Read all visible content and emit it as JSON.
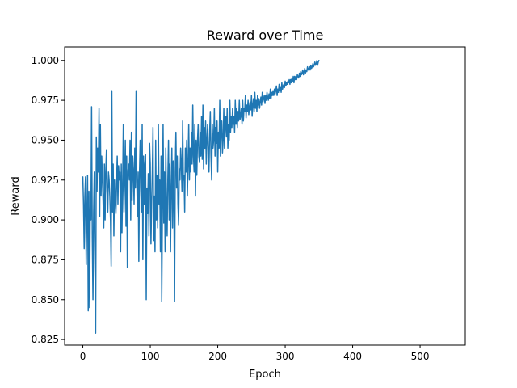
{
  "chart_data": {
    "type": "line",
    "title": "Reward over Time",
    "xlabel": "Epoch",
    "ylabel": "Reward",
    "xlim": [
      -27,
      567
    ],
    "ylim": [
      0.8215,
      1.0085
    ],
    "xticks": [
      0,
      100,
      200,
      300,
      400,
      500
    ],
    "xtick_labels": [
      "0",
      "100",
      "200",
      "300",
      "400",
      "500"
    ],
    "yticks": [
      0.825,
      0.85,
      0.875,
      0.9,
      0.925,
      0.95,
      0.975,
      1.0
    ],
    "ytick_labels": [
      "0.825",
      "0.850",
      "0.875",
      "0.900",
      "0.925",
      "0.950",
      "0.975",
      "1.000"
    ],
    "grid": false,
    "legend": "none",
    "series": [
      {
        "color": "#1f77b4",
        "x_start": 0,
        "x_step": 1,
        "values": [
          0.927,
          0.91,
          0.882,
          0.915,
          0.927,
          0.872,
          0.905,
          0.928,
          0.843,
          0.918,
          0.845,
          0.908,
          0.9,
          0.971,
          0.89,
          0.85,
          0.905,
          0.93,
          0.87,
          0.829,
          0.952,
          0.918,
          0.945,
          0.93,
          0.97,
          0.902,
          0.96,
          0.915,
          0.94,
          0.925,
          0.912,
          0.895,
          0.935,
          0.9,
          0.93,
          0.944,
          0.918,
          0.905,
          0.93,
          0.925,
          0.915,
          0.9,
          0.871,
          0.981,
          0.905,
          0.935,
          0.89,
          0.925,
          0.912,
          0.904,
          0.922,
          0.94,
          0.91,
          0.934,
          0.925,
          0.93,
          0.88,
          0.935,
          0.892,
          0.92,
          0.96,
          0.905,
          0.928,
          0.95,
          0.896,
          0.94,
          0.87,
          0.931,
          0.935,
          0.925,
          0.95,
          0.9,
          0.955,
          0.912,
          0.94,
          0.93,
          0.91,
          0.945,
          0.92,
          0.981,
          0.925,
          0.902,
          0.93,
          0.874,
          0.93,
          0.95,
          0.92,
          0.905,
          0.96,
          0.875,
          0.94,
          0.91,
          0.935,
          0.941,
          0.85,
          0.92,
          0.904,
          0.929,
          0.89,
          0.948,
          0.935,
          0.885,
          0.91,
          0.93,
          0.958,
          0.887,
          0.915,
          0.88,
          0.95,
          0.9,
          0.928,
          0.895,
          0.96,
          0.91,
          0.925,
          0.88,
          0.94,
          0.849,
          0.905,
          0.96,
          0.898,
          0.93,
          0.88,
          0.945,
          0.91,
          0.89,
          0.925,
          0.95,
          0.9,
          0.935,
          0.88,
          0.92,
          0.945,
          0.895,
          0.937,
          0.91,
          0.849,
          0.93,
          0.955,
          0.92,
          0.94,
          0.91,
          0.897,
          0.932,
          0.925,
          0.945,
          0.935,
          0.918,
          0.962,
          0.925,
          0.928,
          0.905,
          0.945,
          0.93,
          0.95,
          0.915,
          0.935,
          0.96,
          0.925,
          0.945,
          0.93,
          0.955,
          0.935,
          0.972,
          0.94,
          0.93,
          0.96,
          0.915,
          0.95,
          0.928,
          0.95,
          0.96,
          0.94,
          0.936,
          0.955,
          0.94,
          0.965,
          0.938,
          0.972,
          0.932,
          0.958,
          0.945,
          0.962,
          0.935,
          0.95,
          0.96,
          0.942,
          0.93,
          0.955,
          0.968,
          0.94,
          0.925,
          0.96,
          0.945,
          0.95,
          0.97,
          0.94,
          0.958,
          0.948,
          0.962,
          0.93,
          0.955,
          0.945,
          0.975,
          0.94,
          0.956,
          0.962,
          0.942,
          0.95,
          0.97,
          0.945,
          0.958,
          0.965,
          0.952,
          0.97,
          0.945,
          0.96,
          0.95,
          0.975,
          0.955,
          0.965,
          0.958,
          0.97,
          0.96,
          0.965,
          0.955,
          0.975,
          0.96,
          0.97,
          0.958,
          0.968,
          0.962,
          0.975,
          0.963,
          0.965,
          0.97,
          0.96,
          0.975,
          0.962,
          0.97,
          0.968,
          0.978,
          0.964,
          0.972,
          0.968,
          0.975,
          0.966,
          0.971,
          0.974,
          0.969,
          0.978,
          0.965,
          0.972,
          0.976,
          0.968,
          0.98,
          0.97,
          0.975,
          0.968,
          0.978,
          0.972,
          0.976,
          0.97,
          0.974,
          0.977,
          0.972,
          0.98,
          0.974,
          0.976,
          0.978,
          0.973,
          0.978,
          0.975,
          0.98,
          0.977,
          0.975,
          0.979,
          0.976,
          0.982,
          0.976,
          0.98,
          0.978,
          0.981,
          0.978,
          0.982,
          0.979,
          0.981,
          0.984,
          0.978,
          0.982,
          0.98,
          0.985,
          0.981,
          0.983,
          0.98,
          0.986,
          0.982,
          0.984,
          0.985,
          0.983,
          0.987,
          0.984,
          0.986,
          0.985,
          0.987,
          0.986,
          0.988,
          0.985,
          0.988,
          0.986,
          0.989,
          0.987,
          0.99,
          0.986,
          0.99,
          0.988,
          0.99,
          0.988,
          0.991,
          0.99,
          0.989,
          0.992,
          0.99,
          0.993,
          0.991,
          0.992,
          0.994,
          0.991,
          0.993,
          0.995,
          0.992,
          0.994,
          0.993,
          0.996,
          0.994,
          0.995,
          0.996,
          0.994,
          0.997,
          0.995,
          0.996,
          0.998,
          0.996,
          0.997,
          0.999,
          0.997,
          0.998,
          1.0,
          0.997,
          0.999,
          1.0
        ]
      }
    ]
  }
}
